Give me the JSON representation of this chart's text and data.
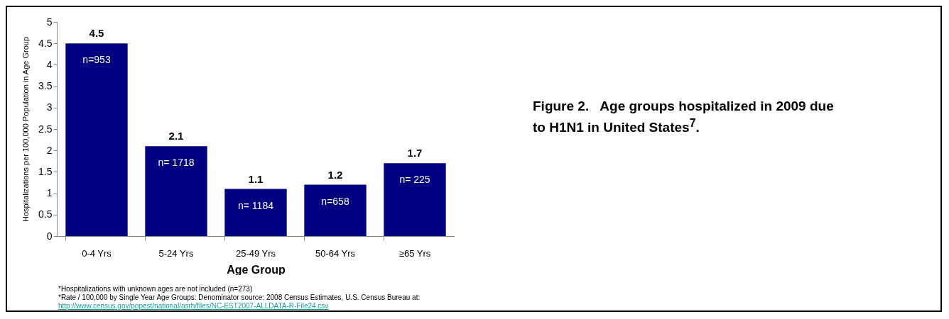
{
  "chart_data": {
    "type": "bar",
    "title": "Figure 2.   Age groups hospitalized in 2009 due to H1N1 in United States$^{7}$.",
    "xlabel": "Age Group",
    "ylabel": "Hospitalizations per 100,000 Population in Age Group",
    "categories": [
      "0-4 Yrs",
      "5-24 Yrs",
      "25-49 Yrs",
      "50-64 Yrs",
      "≥65 Yrs"
    ],
    "values": [
      4.5,
      2.1,
      1.1,
      1.2,
      1.7
    ],
    "color": "#000080",
    "ylim": [
      0,
      5
    ],
    "yticks": [
      0,
      0.5,
      1,
      1.5,
      2,
      2.5,
      3,
      3.5,
      4,
      4.5,
      5
    ],
    "grid": false,
    "data_labels": true,
    "annotations": [
      {
        "text": "n=953",
        "x": "0-4 Yrs",
        "y": 4.5
      },
      {
        "text": "n= 1718",
        "x": "5-24 Yrs",
        "y": 2.1
      },
      {
        "text": "n= 1184",
        "x": "25-49 Yrs",
        "y": 1.1
      },
      {
        "text": "n=658",
        "x": "50-64 Yrs",
        "y": 1.2
      },
      {
        "text": "n= 225",
        "x": "≥65 Yrs",
        "y": 1.7
      },
      "*Hospitalizations with unknown ages are not included (n=273)",
      "*Rate / 100,000 by Single Year Age Groups: Denominator source: 2008 Census Estimates, U.S. Census Bureau at:",
      "http://www.census.gov/popest/national/asrh/files/NC-EST2007-ALLDATA-R-File24.csv"
    ]
  }
}
